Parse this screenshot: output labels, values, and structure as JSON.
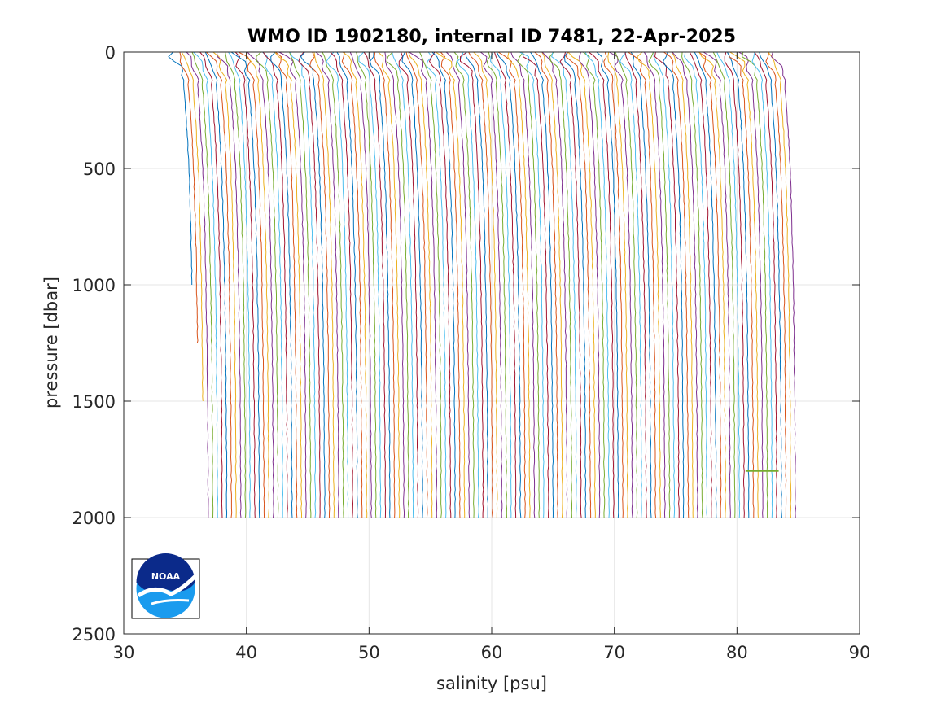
{
  "chart_data": {
    "type": "line",
    "title": "WMO ID 1902180, internal ID 7481, 22-Apr-2025",
    "xlabel": "salinity [psu]",
    "ylabel": "pressure [dbar]",
    "xlim": [
      30,
      90
    ],
    "ylim": [
      0,
      2500
    ],
    "y_reversed": true,
    "grid": true,
    "xticks": [
      30,
      40,
      50,
      60,
      70,
      80,
      90
    ],
    "yticks": [
      0,
      500,
      1000,
      1500,
      2000,
      2500
    ],
    "xtick_labels": [
      "30",
      "40",
      "50",
      "60",
      "70",
      "80",
      "90"
    ],
    "ytick_labels": [
      "0",
      "500",
      "1000",
      "1500",
      "2000",
      "2500"
    ],
    "series_note_profiles": {
      "count": 130,
      "first_offset_salinity": 35.0,
      "offset_step": 0.38,
      "max_pressure": 2010,
      "surface_salinity_anomaly": -1.0,
      "deep_salinity_increase": 0.8
    },
    "annotations": [
      {
        "type": "flag-segment",
        "x": [
          80.7,
          83.4
        ],
        "y": 1800,
        "color": "#77ac30"
      }
    ],
    "series_colors": [
      "#0072bd",
      "#d95319",
      "#edb120",
      "#7e2f8e",
      "#77ac30",
      "#4dbeee",
      "#a2142f"
    ]
  },
  "logo": {
    "text": "NOAA"
  }
}
